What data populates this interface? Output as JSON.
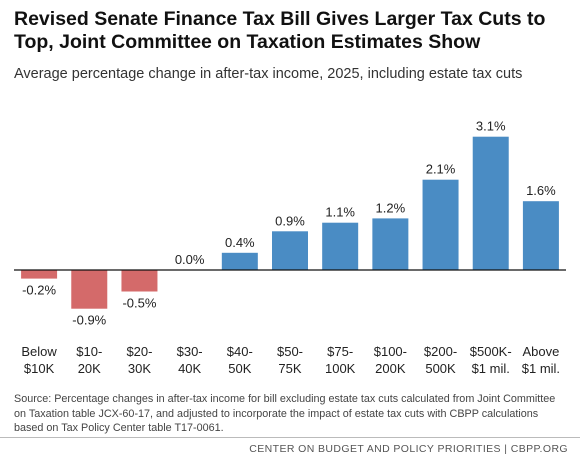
{
  "title": "Revised Senate Finance Tax Bill Gives Larger Tax Cuts to Top, Joint Committee on Taxation Estimates Show",
  "subtitle": "Average percentage change in after-tax income, 2025, including estate tax cuts",
  "source": "Source: Percentage changes in after-tax income for bill excluding estate tax cuts calculated from Joint Committee on Taxation table JCX-60-17, and adjusted to incorporate the impact of estate tax cuts with CBPP calculations based on Tax Policy Center table T17-0061.",
  "footer": "CENTER ON BUDGET AND POLICY PRIORITIES | CBPP.ORG",
  "colors": {
    "positive": "#4a8cc4",
    "negative": "#d46a6a"
  },
  "chart_data": {
    "type": "bar",
    "categories": [
      [
        "Below",
        "$10K"
      ],
      [
        "$10-",
        "20K"
      ],
      [
        "$20-",
        "30K"
      ],
      [
        "$30-",
        "40K"
      ],
      [
        "$40-",
        "50K"
      ],
      [
        "$50-",
        "75K"
      ],
      [
        "$75-",
        "100K"
      ],
      [
        "$100-",
        "200K"
      ],
      [
        "$200-",
        "500K"
      ],
      [
        "$500K-",
        "$1 mil."
      ],
      [
        "Above",
        "$1 mil."
      ]
    ],
    "values": [
      -0.2,
      -0.9,
      -0.5,
      0.0,
      0.4,
      0.9,
      1.1,
      1.2,
      2.1,
      3.1,
      1.6
    ],
    "labels": [
      "-0.2%",
      "-0.9%",
      "-0.5%",
      "0.0%",
      "0.4%",
      "0.9%",
      "1.1%",
      "1.2%",
      "2.1%",
      "3.1%",
      "1.6%"
    ],
    "ylim": [
      -1.0,
      3.3
    ],
    "grid": false,
    "legend": "none"
  }
}
